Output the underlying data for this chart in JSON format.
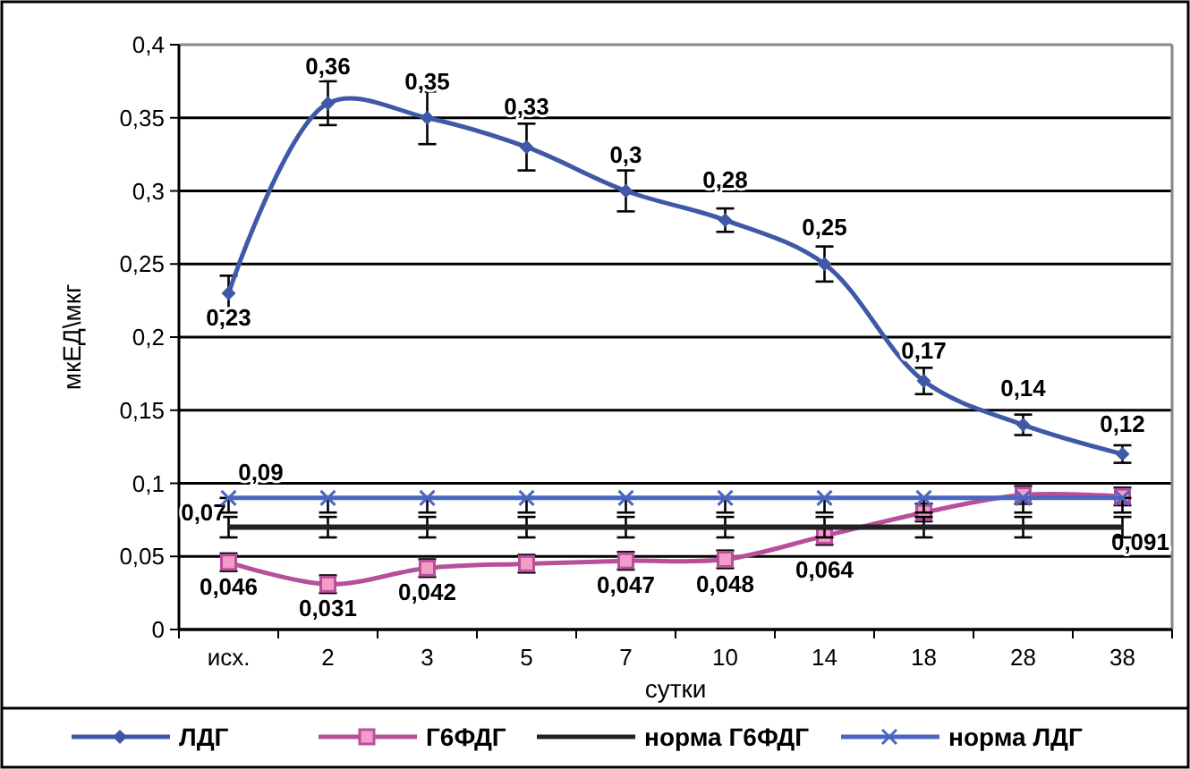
{
  "chart_data": {
    "type": "line",
    "xlabel": "сутки",
    "ylabel": "мкЕД\\мкг",
    "categories": [
      "исх.",
      "2",
      "3",
      "5",
      "7",
      "10",
      "14",
      "18",
      "28",
      "38"
    ],
    "series": [
      {
        "name": "ЛДГ",
        "color": "#3f58a8",
        "marker": "diamond",
        "values": [
          0.23,
          0.36,
          0.35,
          0.33,
          0.3,
          0.28,
          0.25,
          0.17,
          0.14,
          0.12
        ],
        "errors": [
          0.012,
          0.015,
          0.018,
          0.016,
          0.014,
          0.008,
          0.012,
          0.009,
          0.007,
          0.006
        ],
        "value_labels": [
          "0,23",
          "0,36",
          "0,35",
          "0,33",
          "0,3",
          "0,28",
          "0,25",
          "0,17",
          "0,14",
          "0,12"
        ]
      },
      {
        "name": "Г6ФДГ",
        "color": "#b84f9a",
        "marker": "square",
        "values": [
          0.046,
          0.031,
          0.042,
          0.045,
          0.047,
          0.048,
          0.064,
          0.08,
          0.092,
          0.091
        ],
        "errors": [
          0.006,
          0.006,
          0.006,
          0.006,
          0.006,
          0.006,
          0.006,
          0.006,
          0.006,
          0.006
        ],
        "value_labels": [
          "0,046",
          "0,031",
          "0,042",
          null,
          "0,047",
          "0,048",
          "0,064",
          null,
          null,
          "0,091"
        ]
      },
      {
        "name": "норма Г6ФДГ",
        "color": "#222222",
        "marker": "none",
        "values": [
          0.07,
          0.07,
          0.07,
          0.07,
          0.07,
          0.07,
          0.07,
          0.07,
          0.07,
          0.07
        ],
        "errors": [
          0.007,
          0.007,
          0.007,
          0.007,
          0.007,
          0.007,
          0.007,
          0.007,
          0.007,
          0.007
        ],
        "value_labels": [
          "0,07",
          null,
          null,
          null,
          null,
          null,
          null,
          null,
          null,
          null
        ]
      },
      {
        "name": "норма ЛДГ",
        "color": "#4a66c0",
        "marker": "cross",
        "values": [
          0.09,
          0.09,
          0.09,
          0.09,
          0.09,
          0.09,
          0.09,
          0.09,
          0.09,
          0.09
        ],
        "errors": [
          [
            0.08,
            0.09
          ],
          [
            0.08,
            0.09
          ],
          [
            0.08,
            0.09
          ],
          [
            0.08,
            0.09
          ],
          [
            0.08,
            0.09
          ],
          [
            0.08,
            0.09
          ],
          [
            0.08,
            0.09
          ],
          [
            0.08,
            0.09
          ],
          [
            0.08,
            0.09
          ],
          [
            0.08,
            0.09
          ]
        ],
        "value_labels": [
          "0,09",
          null,
          null,
          null,
          null,
          null,
          null,
          null,
          null,
          null
        ]
      }
    ],
    "ylim": [
      0,
      0.4
    ],
    "yticks": [
      {
        "value": 0,
        "label": "0"
      },
      {
        "value": 0.05,
        "label": "0,05"
      },
      {
        "value": 0.1,
        "label": "0,1"
      },
      {
        "value": 0.15,
        "label": "0,15"
      },
      {
        "value": 0.2,
        "label": "0,2"
      },
      {
        "value": 0.25,
        "label": "0,25"
      },
      {
        "value": 0.3,
        "label": "0,3"
      },
      {
        "value": 0.35,
        "label": "0,35"
      },
      {
        "value": 0.4,
        "label": "0,4"
      }
    ],
    "grid": "y",
    "legend": "bottom",
    "line_style": "solid"
  }
}
